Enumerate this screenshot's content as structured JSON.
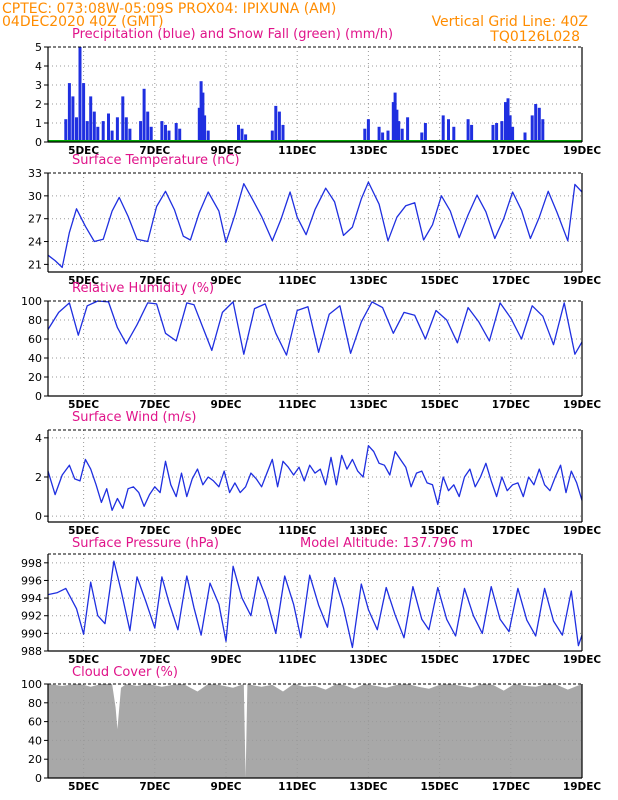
{
  "header": {
    "line1": "CPTEC:    073:08W-05:09S    PROX04: IPIXUNA (AM)",
    "line2": "04DEC2020 40Z (GMT)",
    "vgrid": "Vertical Grid Line: 40Z",
    "code": "TQ0126L028"
  },
  "colors": {
    "header": "#ff8c00",
    "title": "#e0148a",
    "line": "#1f2fe0",
    "snow": "#00aa00",
    "cloud": "#a8a8a8",
    "grid": "#9a9a9a"
  },
  "x_ticks": [
    "5DEC",
    "7DEC",
    "9DEC",
    "11DEC",
    "13DEC",
    "15DEC",
    "17DEC",
    "19DEC"
  ],
  "chart_data": [
    {
      "type": "bar",
      "title": "Precipitation (blue) and Snow Fall (green) (mm/h)",
      "yticks": [
        "5",
        "4",
        "3",
        "2",
        "1",
        "0"
      ],
      "ylim": [
        0,
        5
      ],
      "series": [
        {
          "name": "Precipitation",
          "points": [
            [
              4.5,
              1.2
            ],
            [
              4.6,
              3.1
            ],
            [
              4.7,
              2.4
            ],
            [
              4.8,
              1.3
            ],
            [
              4.9,
              5.0
            ],
            [
              5.0,
              3.1
            ],
            [
              5.1,
              1.1
            ],
            [
              5.2,
              2.4
            ],
            [
              5.3,
              1.6
            ],
            [
              5.4,
              0.8
            ],
            [
              5.55,
              1.1
            ],
            [
              5.7,
              1.5
            ],
            [
              5.8,
              0.6
            ],
            [
              5.95,
              1.3
            ],
            [
              6.1,
              2.4
            ],
            [
              6.2,
              1.3
            ],
            [
              6.3,
              0.7
            ],
            [
              6.6,
              1.1
            ],
            [
              6.7,
              2.8
            ],
            [
              6.8,
              1.6
            ],
            [
              6.9,
              0.8
            ],
            [
              7.2,
              1.1
            ],
            [
              7.3,
              0.9
            ],
            [
              7.4,
              0.6
            ],
            [
              7.6,
              1.0
            ],
            [
              7.7,
              0.7
            ],
            [
              8.25,
              1.8
            ],
            [
              8.3,
              3.2
            ],
            [
              8.35,
              2.6
            ],
            [
              8.4,
              1.4
            ],
            [
              8.5,
              0.6
            ],
            [
              9.35,
              0.9
            ],
            [
              9.45,
              0.7
            ],
            [
              9.55,
              0.4
            ],
            [
              10.3,
              0.6
            ],
            [
              10.4,
              1.9
            ],
            [
              10.5,
              1.6
            ],
            [
              10.6,
              0.9
            ],
            [
              12.9,
              0.7
            ],
            [
              13.0,
              1.2
            ],
            [
              13.3,
              0.8
            ],
            [
              13.4,
              0.5
            ],
            [
              13.55,
              0.6
            ],
            [
              13.7,
              2.1
            ],
            [
              13.75,
              2.6
            ],
            [
              13.8,
              1.7
            ],
            [
              13.85,
              1.1
            ],
            [
              13.95,
              0.7
            ],
            [
              14.1,
              1.3
            ],
            [
              14.5,
              0.5
            ],
            [
              14.6,
              1.0
            ],
            [
              15.1,
              1.4
            ],
            [
              15.25,
              1.2
            ],
            [
              15.4,
              0.8
            ],
            [
              15.8,
              1.2
            ],
            [
              15.9,
              0.9
            ],
            [
              16.5,
              0.9
            ],
            [
              16.6,
              1.0
            ],
            [
              16.75,
              1.1
            ],
            [
              16.85,
              2.1
            ],
            [
              16.92,
              2.3
            ],
            [
              16.98,
              1.4
            ],
            [
              17.05,
              0.8
            ],
            [
              17.4,
              0.5
            ],
            [
              17.6,
              1.4
            ],
            [
              17.7,
              2.0
            ],
            [
              17.8,
              1.8
            ],
            [
              17.9,
              1.2
            ]
          ]
        },
        {
          "name": "Snow Fall",
          "points": []
        }
      ]
    },
    {
      "type": "line",
      "title": "Surface Temperature (nC)",
      "yticks": [
        "33",
        "30",
        "27",
        "24",
        "21"
      ],
      "ylim": [
        20,
        33
      ],
      "x": [
        4.0,
        4.2,
        4.4,
        4.6,
        4.8,
        5.05,
        5.3,
        5.55,
        5.8,
        6.0,
        6.25,
        6.5,
        6.8,
        7.05,
        7.3,
        7.55,
        7.8,
        8.0,
        8.25,
        8.5,
        8.8,
        9.0,
        9.25,
        9.5,
        9.75,
        10.0,
        10.3,
        10.55,
        10.8,
        11.0,
        11.25,
        11.5,
        11.8,
        12.05,
        12.3,
        12.55,
        12.8,
        13.0,
        13.3,
        13.55,
        13.8,
        14.05,
        14.3,
        14.55,
        14.8,
        15.05,
        15.3,
        15.55,
        15.8,
        16.05,
        16.3,
        16.55,
        16.8,
        17.05,
        17.3,
        17.55,
        17.8,
        18.05,
        18.3,
        18.6,
        18.8,
        19.0
      ],
      "y": [
        22.2,
        21.5,
        20.6,
        25.2,
        28.3,
        26.0,
        24.0,
        24.3,
        28.0,
        29.8,
        27.3,
        24.3,
        24.0,
        28.6,
        30.6,
        28.2,
        24.7,
        24.2,
        27.8,
        30.5,
        28.0,
        23.9,
        27.5,
        31.6,
        29.5,
        27.3,
        24.1,
        27.0,
        30.5,
        27.2,
        24.9,
        28.2,
        31.0,
        29.2,
        24.8,
        25.9,
        29.6,
        31.8,
        28.9,
        24.1,
        27.2,
        28.7,
        29.1,
        24.2,
        26.2,
        30.0,
        28.0,
        24.5,
        27.5,
        30.1,
        27.9,
        24.4,
        27.0,
        30.5,
        28.1,
        24.4,
        27.2,
        30.6,
        27.8,
        24.1,
        31.5,
        30.5
      ]
    },
    {
      "type": "line",
      "title": "Relative Humidity (%)",
      "yticks": [
        "100",
        "80",
        "60",
        "40",
        "20",
        "0"
      ],
      "ylim": [
        0,
        100
      ],
      "x": [
        4.0,
        4.3,
        4.6,
        4.85,
        5.1,
        5.4,
        5.7,
        5.95,
        6.2,
        6.5,
        6.8,
        7.05,
        7.3,
        7.6,
        7.9,
        8.1,
        8.35,
        8.6,
        8.9,
        9.2,
        9.5,
        9.8,
        10.1,
        10.4,
        10.7,
        11.0,
        11.3,
        11.6,
        11.9,
        12.2,
        12.5,
        12.8,
        13.1,
        13.4,
        13.7,
        14.0,
        14.3,
        14.6,
        14.9,
        15.2,
        15.5,
        15.8,
        16.1,
        16.4,
        16.7,
        17.0,
        17.3,
        17.6,
        17.9,
        18.2,
        18.5,
        18.8,
        19.0
      ],
      "y": [
        70,
        88,
        98,
        64,
        95,
        100,
        99,
        72,
        55,
        75,
        98,
        97,
        66,
        58,
        98,
        96,
        72,
        48,
        88,
        99,
        44,
        92,
        97,
        66,
        43,
        90,
        94,
        46,
        86,
        95,
        45,
        78,
        99,
        93,
        66,
        88,
        85,
        60,
        90,
        80,
        56,
        93,
        78,
        58,
        98,
        82,
        60,
        95,
        84,
        54,
        98,
        44,
        57
      ]
    },
    {
      "type": "line",
      "title": "Surface Wind (m/s)",
      "yticks": [
        "4",
        "2",
        "0"
      ],
      "ylim": [
        -0.3,
        4.4
      ],
      "x": [
        4.0,
        4.2,
        4.4,
        4.6,
        4.75,
        4.9,
        5.05,
        5.2,
        5.35,
        5.5,
        5.65,
        5.8,
        5.95,
        6.1,
        6.25,
        6.4,
        6.55,
        6.7,
        6.85,
        7.0,
        7.15,
        7.3,
        7.45,
        7.6,
        7.75,
        7.9,
        8.05,
        8.2,
        8.35,
        8.5,
        8.65,
        8.8,
        8.95,
        9.1,
        9.25,
        9.4,
        9.55,
        9.7,
        9.85,
        10.0,
        10.15,
        10.3,
        10.45,
        10.6,
        10.75,
        10.9,
        11.05,
        11.2,
        11.35,
        11.5,
        11.65,
        11.8,
        11.95,
        12.1,
        12.25,
        12.4,
        12.55,
        12.7,
        12.85,
        13.0,
        13.15,
        13.3,
        13.45,
        13.6,
        13.75,
        13.9,
        14.05,
        14.2,
        14.35,
        14.5,
        14.65,
        14.8,
        14.95,
        15.1,
        15.25,
        15.4,
        15.55,
        15.7,
        15.85,
        16.0,
        16.15,
        16.3,
        16.45,
        16.6,
        16.75,
        16.9,
        17.05,
        17.2,
        17.35,
        17.5,
        17.65,
        17.8,
        17.95,
        18.1,
        18.25,
        18.4,
        18.55,
        18.7,
        18.85,
        19.0
      ],
      "y": [
        2.3,
        1.1,
        2.1,
        2.6,
        1.9,
        1.8,
        2.9,
        2.4,
        1.6,
        0.7,
        1.4,
        0.3,
        0.9,
        0.4,
        1.4,
        1.5,
        1.2,
        0.5,
        1.1,
        1.5,
        1.2,
        2.8,
        1.6,
        1.0,
        2.2,
        1.0,
        1.9,
        2.4,
        1.6,
        2.0,
        1.8,
        1.5,
        2.3,
        1.2,
        1.7,
        1.2,
        1.5,
        2.2,
        1.9,
        1.5,
        2.2,
        2.9,
        1.5,
        2.8,
        2.5,
        2.1,
        2.5,
        1.8,
        2.6,
        2.2,
        2.4,
        1.6,
        3.0,
        1.6,
        3.1,
        2.4,
        2.9,
        2.3,
        2.0,
        3.6,
        3.3,
        2.7,
        2.6,
        2.1,
        3.3,
        2.9,
        2.5,
        1.5,
        2.2,
        2.3,
        1.7,
        1.6,
        0.6,
        2.0,
        1.3,
        1.6,
        1.0,
        2.0,
        2.4,
        1.5,
        2.0,
        2.7,
        1.8,
        1.0,
        2.0,
        1.3,
        1.6,
        1.7,
        1.0,
        2.0,
        1.6,
        2.4,
        1.6,
        1.3,
        2.0,
        2.6,
        1.2,
        2.3,
        1.7,
        0.8
      ]
    },
    {
      "type": "line",
      "title": "Surface Pressure (hPa)",
      "subtitle": "Model Altitude: 137.796 m",
      "yticks": [
        "998",
        "996",
        "994",
        "992",
        "990",
        "988"
      ],
      "ylim": [
        988,
        999
      ],
      "x": [
        4.0,
        4.25,
        4.5,
        4.8,
        5.0,
        5.2,
        5.4,
        5.6,
        5.85,
        6.05,
        6.3,
        6.5,
        6.75,
        7.0,
        7.2,
        7.4,
        7.65,
        7.9,
        8.1,
        8.3,
        8.55,
        8.8,
        9.0,
        9.2,
        9.45,
        9.7,
        9.9,
        10.15,
        10.4,
        10.65,
        10.9,
        11.1,
        11.35,
        11.6,
        11.85,
        12.05,
        12.3,
        12.55,
        12.8,
        13.0,
        13.25,
        13.5,
        13.75,
        14.0,
        14.25,
        14.5,
        14.7,
        14.95,
        15.2,
        15.45,
        15.7,
        15.95,
        16.2,
        16.45,
        16.7,
        16.95,
        17.2,
        17.45,
        17.7,
        17.95,
        18.2,
        18.45,
        18.7,
        18.9,
        19.0
      ],
      "y": [
        994.4,
        994.6,
        995.1,
        992.8,
        989.9,
        995.8,
        992.0,
        991.1,
        998.2,
        994.9,
        990.3,
        996.4,
        993.6,
        990.6,
        996.4,
        993.5,
        990.4,
        996.5,
        992.9,
        989.8,
        995.7,
        993.3,
        989.1,
        997.6,
        994.0,
        992.0,
        996.4,
        993.8,
        990.0,
        996.5,
        993.3,
        989.5,
        996.6,
        993.2,
        990.7,
        996.3,
        992.9,
        988.4,
        995.6,
        992.7,
        990.4,
        995.2,
        992.1,
        989.5,
        995.3,
        991.6,
        990.4,
        995.2,
        991.6,
        989.7,
        995.1,
        992.0,
        990.0,
        995.3,
        991.6,
        990.2,
        995.1,
        991.5,
        989.7,
        995.1,
        991.4,
        989.8,
        994.8,
        988.6,
        989.8
      ]
    },
    {
      "type": "area",
      "title": "Cloud Cover (%)",
      "yticks": [
        "100",
        "80",
        "60",
        "40",
        "20",
        "0"
      ],
      "ylim": [
        0,
        100
      ],
      "x": [
        4.0,
        4.4,
        4.8,
        5.0,
        5.2,
        5.5,
        5.8,
        5.9,
        5.95,
        6.05,
        6.2,
        6.5,
        6.8,
        7.2,
        7.5,
        7.8,
        8.2,
        8.5,
        8.8,
        9.2,
        9.5,
        9.55,
        9.6,
        9.7,
        10.0,
        10.3,
        10.6,
        10.9,
        11.2,
        11.5,
        11.8,
        12.1,
        12.3,
        12.6,
        12.9,
        13.2,
        13.5,
        13.8,
        14.1,
        14.4,
        14.7,
        15.0,
        15.3,
        15.6,
        15.9,
        16.2,
        16.5,
        16.8,
        17.1,
        17.4,
        17.7,
        18.0,
        18.3,
        18.6,
        19.0
      ],
      "y": [
        100,
        98,
        100,
        99,
        97,
        100,
        100,
        75,
        52,
        96,
        100,
        98,
        100,
        97,
        99,
        100,
        92,
        100,
        99,
        96,
        100,
        0,
        100,
        99,
        97,
        99,
        92,
        100,
        97,
        98,
        94,
        100,
        99,
        95,
        100,
        98,
        96,
        99,
        100,
        97,
        95,
        99,
        100,
        98,
        96,
        100,
        99,
        93,
        100,
        98,
        97,
        100,
        99,
        94,
        100
      ]
    }
  ]
}
